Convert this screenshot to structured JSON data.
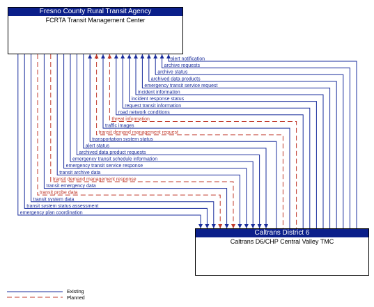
{
  "nodes": {
    "fcrta": {
      "org": "Fresno County Rural Transit Agency",
      "name": "FCRTA Transit Management Center"
    },
    "caltrans": {
      "org": "Caltrans District 6",
      "name": "Caltrans D6/CHP Central Valley TMC"
    }
  },
  "colors": {
    "existing": "#1a2d9c",
    "planned": "#c0392b",
    "header": "#0b1f8a"
  },
  "flows": [
    {
      "label": "alert notification",
      "status": "existing",
      "direction": "to-fcrta"
    },
    {
      "label": "archive requests",
      "status": "existing",
      "direction": "to-fcrta"
    },
    {
      "label": "archive status",
      "status": "existing",
      "direction": "to-fcrta"
    },
    {
      "label": "archived data products",
      "status": "existing",
      "direction": "to-fcrta"
    },
    {
      "label": "emergency transit service request",
      "status": "existing",
      "direction": "to-fcrta"
    },
    {
      "label": "incident information",
      "status": "existing",
      "direction": "to-fcrta"
    },
    {
      "label": "incident response status",
      "status": "existing",
      "direction": "to-fcrta"
    },
    {
      "label": "request transit information",
      "status": "existing",
      "direction": "to-fcrta"
    },
    {
      "label": "road network conditions",
      "status": "existing",
      "direction": "to-fcrta"
    },
    {
      "label": "threat information",
      "status": "planned",
      "direction": "to-fcrta"
    },
    {
      "label": "traffic images",
      "status": "existing",
      "direction": "to-fcrta"
    },
    {
      "label": "transit demand management request",
      "status": "planned",
      "direction": "to-fcrta"
    },
    {
      "label": "transportation system status",
      "status": "existing",
      "direction": "to-fcrta"
    },
    {
      "label": "alert status",
      "status": "existing",
      "direction": "to-caltrans"
    },
    {
      "label": "archived data product requests",
      "status": "existing",
      "direction": "to-caltrans"
    },
    {
      "label": "emergency transit schedule information",
      "status": "existing",
      "direction": "to-caltrans"
    },
    {
      "label": "emergency transit service response",
      "status": "existing",
      "direction": "to-caltrans"
    },
    {
      "label": "transit archive data",
      "status": "existing",
      "direction": "to-caltrans"
    },
    {
      "label": "transit demand management response",
      "status": "planned",
      "direction": "to-caltrans"
    },
    {
      "label": "transit emergency data",
      "status": "existing",
      "direction": "to-caltrans"
    },
    {
      "label": "transit probe data",
      "status": "planned",
      "direction": "to-caltrans"
    },
    {
      "label": "transit system data",
      "status": "existing",
      "direction": "to-caltrans"
    },
    {
      "label": "transit system status assessment",
      "status": "existing",
      "direction": "to-caltrans"
    },
    {
      "label": "emergency plan coordination",
      "status": "existing",
      "direction": "to-caltrans"
    }
  ],
  "legend": {
    "existing": "Existing",
    "planned": "Planned"
  }
}
